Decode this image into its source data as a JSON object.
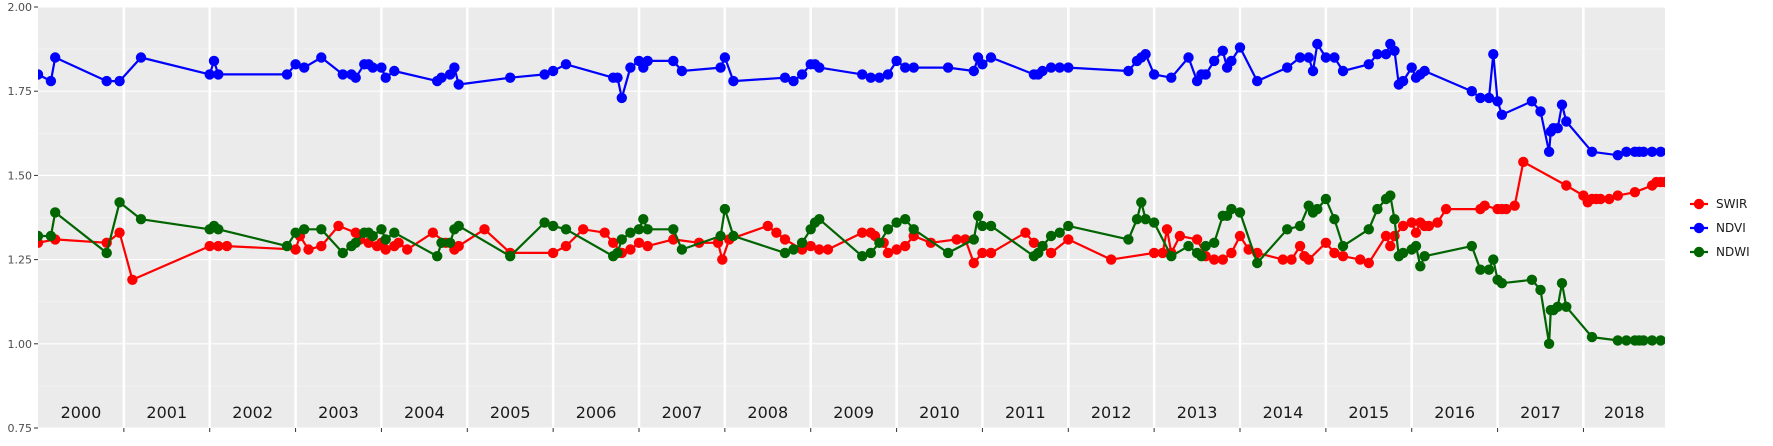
{
  "chart_data": {
    "type": "line",
    "title": "",
    "xlabel": "",
    "ylabel": "",
    "ylim": [
      0.75,
      2.0
    ],
    "xlim": [
      2000.0,
      2018.95
    ],
    "y_ticks": [
      "0.75",
      "1.00",
      "1.25",
      "1.50",
      "1.75",
      "2.00"
    ],
    "y_tick_values": [
      0.75,
      1.0,
      1.25,
      1.5,
      1.75,
      2.0
    ],
    "year_labels": [
      "2000",
      "2001",
      "2002",
      "2003",
      "2004",
      "2005",
      "2006",
      "2007",
      "2008",
      "2009",
      "2010",
      "2011",
      "2012",
      "2013",
      "2014",
      "2015",
      "2016",
      "2017",
      "2018"
    ],
    "grid": true,
    "legend_position": "right",
    "background": "#ebebeb",
    "series": [
      {
        "name": "SWIR",
        "color": "#ff0000",
        "x": [
          2000.0,
          2000.2,
          2000.8,
          2000.95,
          2001.1,
          2002.0,
          2002.1,
          2002.2,
          2003.0,
          2003.05,
          2003.15,
          2003.3,
          2003.5,
          2003.7,
          2003.75,
          2003.85,
          2003.95,
          2004.0,
          2004.05,
          2004.15,
          2004.2,
          2004.3,
          2004.6,
          2004.75,
          2004.85,
          2004.9,
          2005.2,
          2005.5,
          2006.0,
          2006.15,
          2006.35,
          2006.6,
          2006.7,
          2006.8,
          2006.9,
          2007.0,
          2007.1,
          2007.4,
          2007.7,
          2007.92,
          2007.97,
          2008.05,
          2008.5,
          2008.6,
          2008.7,
          2008.9,
          2009.0,
          2009.1,
          2009.2,
          2009.6,
          2009.7,
          2009.75,
          2009.85,
          2009.9,
          2010.0,
          2010.1,
          2010.2,
          2010.4,
          2010.7,
          2010.8,
          2010.9,
          2011.0,
          2011.1,
          2011.5,
          2011.6,
          2011.7,
          2011.8,
          2012.0,
          2012.5,
          2013.0,
          2013.1,
          2013.15,
          2013.2,
          2013.3,
          2013.5,
          2013.6,
          2013.7,
          2013.8,
          2013.9,
          2014.0,
          2014.1,
          2014.2,
          2014.5,
          2014.6,
          2014.7,
          2014.75,
          2014.8,
          2015.0,
          2015.1,
          2015.2,
          2015.4,
          2015.5,
          2015.7,
          2015.75,
          2015.8,
          2015.9,
          2016.0,
          2016.05,
          2016.1,
          2016.15,
          2016.2,
          2016.3,
          2016.4,
          2016.8,
          2016.85,
          2017.0,
          2017.05,
          2017.1,
          2017.2,
          2017.3,
          2017.8,
          2018.0,
          2018.05,
          2018.1,
          2018.15,
          2018.2,
          2018.3,
          2018.4,
          2018.6,
          2018.8,
          2018.85,
          2018.9,
          2018.95
        ],
        "values": [
          1.3,
          1.31,
          1.3,
          1.33,
          1.19,
          1.29,
          1.29,
          1.29,
          1.28,
          1.32,
          1.28,
          1.29,
          1.35,
          1.33,
          1.31,
          1.3,
          1.29,
          1.3,
          1.28,
          1.29,
          1.3,
          1.28,
          1.33,
          1.3,
          1.28,
          1.29,
          1.34,
          1.27,
          1.27,
          1.29,
          1.34,
          1.33,
          1.3,
          1.27,
          1.28,
          1.3,
          1.29,
          1.31,
          1.3,
          1.3,
          1.25,
          1.31,
          1.35,
          1.33,
          1.31,
          1.28,
          1.29,
          1.28,
          1.28,
          1.33,
          1.33,
          1.32,
          1.3,
          1.27,
          1.28,
          1.29,
          1.32,
          1.3,
          1.31,
          1.31,
          1.24,
          1.27,
          1.27,
          1.33,
          1.3,
          1.29,
          1.27,
          1.31,
          1.25,
          1.27,
          1.27,
          1.34,
          1.27,
          1.32,
          1.31,
          1.26,
          1.25,
          1.25,
          1.27,
          1.32,
          1.28,
          1.27,
          1.25,
          1.25,
          1.29,
          1.26,
          1.25,
          1.3,
          1.27,
          1.26,
          1.25,
          1.24,
          1.32,
          1.29,
          1.32,
          1.35,
          1.36,
          1.33,
          1.36,
          1.35,
          1.35,
          1.36,
          1.4,
          1.4,
          1.41,
          1.4,
          1.4,
          1.4,
          1.41,
          1.54,
          1.47,
          1.44,
          1.42,
          1.43,
          1.43,
          1.43,
          1.43,
          1.44,
          1.45,
          1.47,
          1.48,
          1.48,
          1.48
        ],
        "note": ""
      },
      {
        "name": "NDVI",
        "color": "#0000ff",
        "x": [
          2000.0,
          2000.15,
          2000.2,
          2000.8,
          2000.95,
          2001.2,
          2002.0,
          2002.05,
          2002.1,
          2002.9,
          2003.0,
          2003.1,
          2003.3,
          2003.55,
          2003.65,
          2003.7,
          2003.8,
          2003.85,
          2003.9,
          2004.0,
          2004.05,
          2004.15,
          2004.65,
          2004.7,
          2004.8,
          2004.85,
          2004.9,
          2005.5,
          2005.9,
          2006.0,
          2006.15,
          2006.7,
          2006.75,
          2006.8,
          2006.9,
          2007.0,
          2007.05,
          2007.1,
          2007.4,
          2007.5,
          2007.95,
          2008.0,
          2008.1,
          2008.7,
          2008.8,
          2008.9,
          2009.0,
          2009.05,
          2009.1,
          2009.6,
          2009.7,
          2009.8,
          2009.9,
          2010.0,
          2010.1,
          2010.2,
          2010.6,
          2010.9,
          2010.95,
          2011.0,
          2011.1,
          2011.6,
          2011.65,
          2011.7,
          2011.8,
          2011.9,
          2012.0,
          2012.7,
          2012.8,
          2012.85,
          2012.9,
          2013.0,
          2013.2,
          2013.4,
          2013.5,
          2013.55,
          2013.6,
          2013.7,
          2013.8,
          2013.85,
          2013.9,
          2014.0,
          2014.2,
          2014.55,
          2014.7,
          2014.8,
          2014.85,
          2014.9,
          2015.0,
          2015.1,
          2015.2,
          2015.5,
          2015.6,
          2015.7,
          2015.75,
          2015.8,
          2015.85,
          2015.9,
          2016.0,
          2016.05,
          2016.1,
          2016.15,
          2016.7,
          2016.8,
          2016.9,
          2016.95,
          2017.0,
          2017.05,
          2017.4,
          2017.5,
          2017.6,
          2017.62,
          2017.65,
          2017.7,
          2017.75,
          2017.8,
          2018.1,
          2018.4,
          2018.5,
          2018.6,
          2018.65,
          2018.7,
          2018.8,
          2018.9
        ],
        "values": [
          1.8,
          1.78,
          1.85,
          1.78,
          1.78,
          1.85,
          1.8,
          1.84,
          1.8,
          1.8,
          1.83,
          1.82,
          1.85,
          1.8,
          1.8,
          1.79,
          1.83,
          1.83,
          1.82,
          1.82,
          1.79,
          1.81,
          1.78,
          1.79,
          1.8,
          1.82,
          1.77,
          1.79,
          1.8,
          1.81,
          1.83,
          1.79,
          1.79,
          1.73,
          1.82,
          1.84,
          1.82,
          1.84,
          1.84,
          1.81,
          1.82,
          1.85,
          1.78,
          1.79,
          1.78,
          1.8,
          1.83,
          1.83,
          1.82,
          1.8,
          1.79,
          1.79,
          1.8,
          1.84,
          1.82,
          1.82,
          1.82,
          1.81,
          1.85,
          1.83,
          1.85,
          1.8,
          1.8,
          1.81,
          1.82,
          1.82,
          1.82,
          1.81,
          1.84,
          1.85,
          1.86,
          1.8,
          1.79,
          1.85,
          1.78,
          1.8,
          1.8,
          1.84,
          1.87,
          1.82,
          1.84,
          1.88,
          1.78,
          1.82,
          1.85,
          1.85,
          1.81,
          1.89,
          1.85,
          1.85,
          1.81,
          1.83,
          1.86,
          1.86,
          1.89,
          1.87,
          1.77,
          1.78,
          1.82,
          1.79,
          1.8,
          1.81,
          1.75,
          1.73,
          1.73,
          1.86,
          1.72,
          1.68,
          1.72,
          1.69,
          1.57,
          1.63,
          1.64,
          1.64,
          1.71,
          1.66,
          1.57,
          1.56,
          1.57,
          1.57,
          1.57,
          1.57,
          1.57,
          1.57
        ],
        "note": ""
      },
      {
        "name": "NDWI",
        "color": "#006400",
        "x": [
          2000.0,
          2000.15,
          2000.2,
          2000.8,
          2000.95,
          2001.2,
          2002.0,
          2002.05,
          2002.1,
          2002.9,
          2003.0,
          2003.1,
          2003.3,
          2003.55,
          2003.65,
          2003.7,
          2003.8,
          2003.85,
          2003.9,
          2004.0,
          2004.05,
          2004.15,
          2004.65,
          2004.7,
          2004.8,
          2004.85,
          2004.9,
          2005.5,
          2005.9,
          2006.0,
          2006.15,
          2006.7,
          2006.75,
          2006.8,
          2006.9,
          2007.0,
          2007.05,
          2007.1,
          2007.4,
          2007.5,
          2007.95,
          2008.0,
          2008.1,
          2008.7,
          2008.8,
          2008.9,
          2009.0,
          2009.05,
          2009.1,
          2009.6,
          2009.7,
          2009.8,
          2009.9,
          2010.0,
          2010.1,
          2010.2,
          2010.6,
          2010.9,
          2010.95,
          2011.0,
          2011.1,
          2011.6,
          2011.65,
          2011.7,
          2011.8,
          2011.9,
          2012.0,
          2012.7,
          2012.8,
          2012.85,
          2012.9,
          2013.0,
          2013.2,
          2013.4,
          2013.5,
          2013.55,
          2013.6,
          2013.7,
          2013.8,
          2013.85,
          2013.9,
          2014.0,
          2014.2,
          2014.55,
          2014.7,
          2014.8,
          2014.85,
          2014.9,
          2015.0,
          2015.1,
          2015.2,
          2015.5,
          2015.6,
          2015.7,
          2015.75,
          2015.8,
          2015.85,
          2015.9,
          2016.0,
          2016.05,
          2016.1,
          2016.15,
          2016.7,
          2016.8,
          2016.9,
          2016.95,
          2017.0,
          2017.05,
          2017.4,
          2017.5,
          2017.6,
          2017.62,
          2017.65,
          2017.7,
          2017.75,
          2017.8,
          2018.1,
          2018.4,
          2018.5,
          2018.6,
          2018.65,
          2018.7,
          2018.8,
          2018.9
        ],
        "values": [
          1.32,
          1.32,
          1.39,
          1.27,
          1.42,
          1.37,
          1.34,
          1.35,
          1.34,
          1.29,
          1.33,
          1.34,
          1.34,
          1.27,
          1.29,
          1.3,
          1.33,
          1.33,
          1.32,
          1.34,
          1.31,
          1.33,
          1.26,
          1.3,
          1.3,
          1.34,
          1.35,
          1.26,
          1.36,
          1.35,
          1.34,
          1.26,
          1.27,
          1.31,
          1.33,
          1.34,
          1.37,
          1.34,
          1.34,
          1.28,
          1.32,
          1.4,
          1.32,
          1.27,
          1.28,
          1.3,
          1.34,
          1.36,
          1.37,
          1.26,
          1.27,
          1.3,
          1.34,
          1.36,
          1.37,
          1.34,
          1.27,
          1.31,
          1.38,
          1.35,
          1.35,
          1.26,
          1.27,
          1.29,
          1.32,
          1.33,
          1.35,
          1.31,
          1.37,
          1.42,
          1.37,
          1.36,
          1.26,
          1.29,
          1.27,
          1.26,
          1.29,
          1.3,
          1.38,
          1.38,
          1.4,
          1.39,
          1.24,
          1.34,
          1.35,
          1.41,
          1.39,
          1.4,
          1.43,
          1.37,
          1.29,
          1.34,
          1.4,
          1.43,
          1.44,
          1.37,
          1.26,
          1.27,
          1.28,
          1.29,
          1.23,
          1.26,
          1.29,
          1.22,
          1.22,
          1.25,
          1.19,
          1.18,
          1.19,
          1.16,
          1.0,
          1.1,
          1.1,
          1.11,
          1.18,
          1.11,
          1.02,
          1.01,
          1.01,
          1.01,
          1.01,
          1.01,
          1.01,
          1.01
        ],
        "note": ""
      }
    ]
  }
}
